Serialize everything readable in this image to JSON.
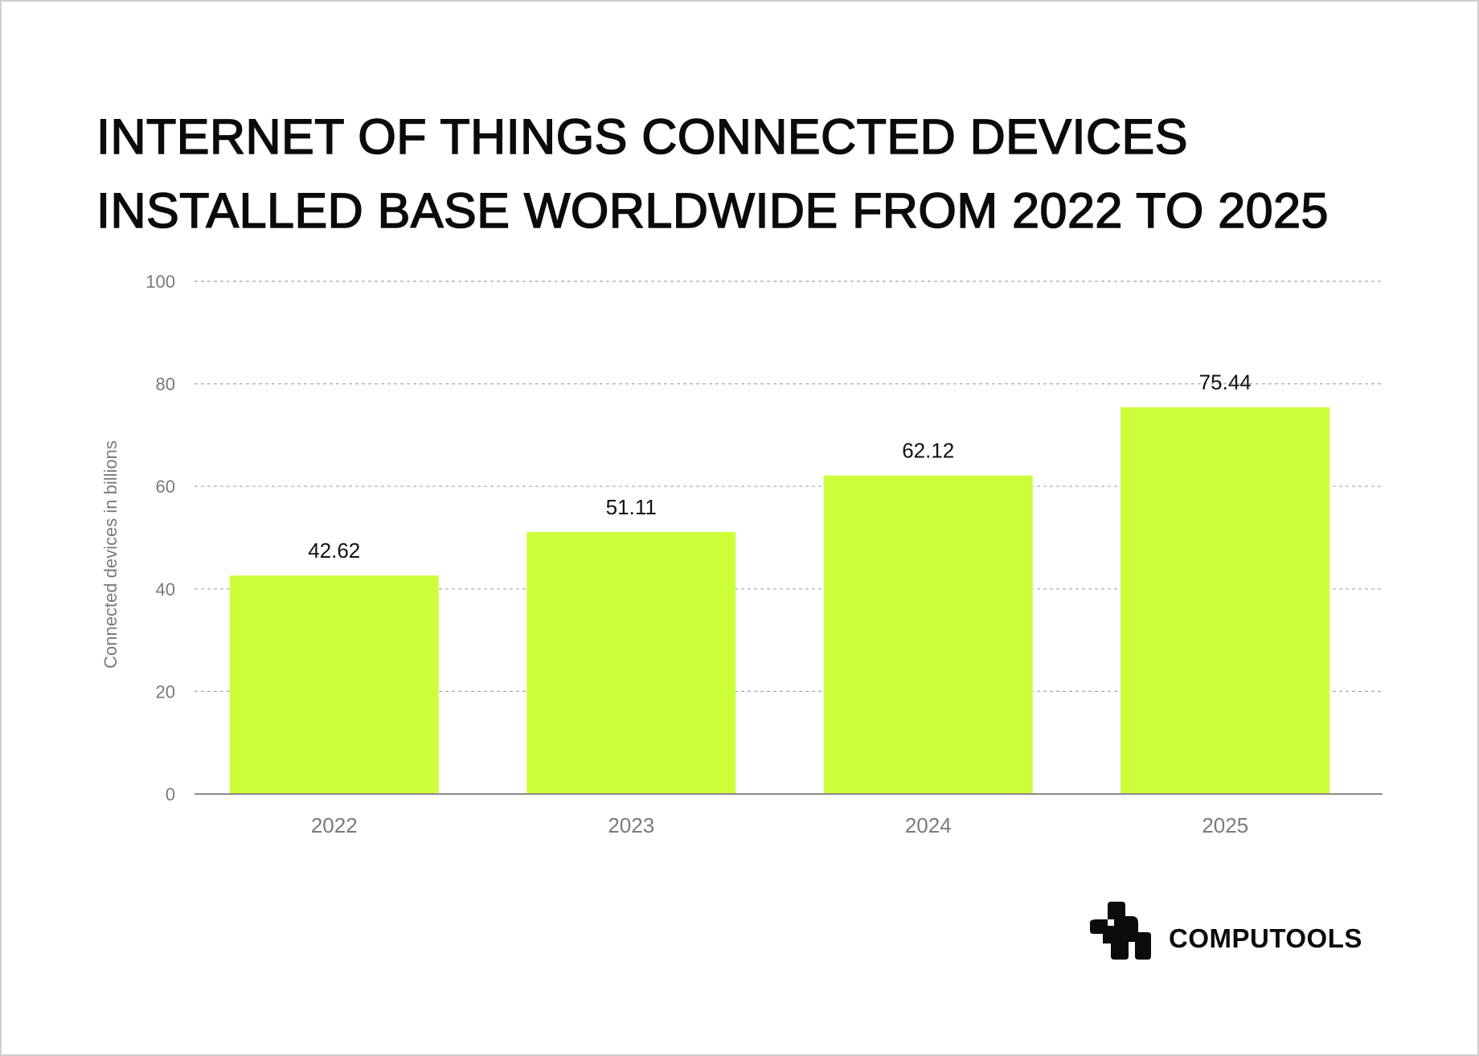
{
  "title_lines": [
    "INTERNET OF THINGS CONNECTED DEVICES",
    "INSTALLED BASE WORLDWIDE FROM 2022 TO 2025"
  ],
  "brand": {
    "name": "COMPUTOOLS",
    "icon": "computools-logo-icon"
  },
  "colors": {
    "bar": "#ccff3a",
    "grid": "#a8a8a8",
    "axis": "#8a8a8a"
  },
  "chart_data": {
    "type": "bar",
    "title": "INTERNET OF THINGS CONNECTED DEVICES INSTALLED BASE WORLDWIDE FROM 2022 TO 2025",
    "categories": [
      "2022",
      "2023",
      "2024",
      "2025"
    ],
    "values": [
      42.62,
      51.11,
      62.12,
      75.44
    ],
    "data_labels": [
      "42.62",
      "51.11",
      "62.12",
      "75.44"
    ],
    "xlabel": "",
    "ylabel": "Connected devices in billions",
    "ylim": [
      0,
      100
    ],
    "yticks": [
      0,
      20,
      40,
      60,
      80,
      100
    ],
    "grid": true,
    "legend": "none"
  }
}
